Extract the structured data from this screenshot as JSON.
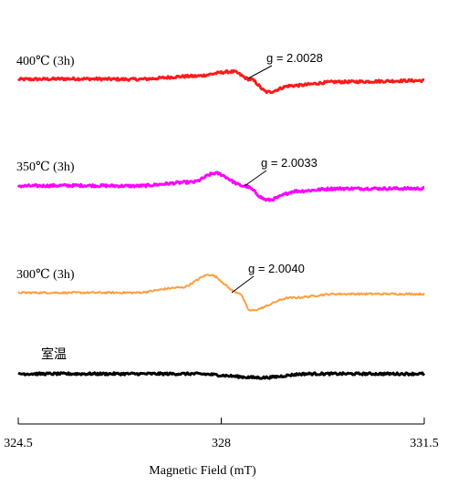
{
  "chart_data": {
    "type": "line",
    "xlabel": "Magnetic   Field (mT)",
    "xlim": [
      324.5,
      331.5
    ],
    "x_ticks": [
      "324.5",
      "328",
      "331.5"
    ],
    "series": [
      {
        "name": "400℃ (3h)",
        "color": "#ff1a1a",
        "g_label": "g = 2.0028",
        "points": [
          [
            324.5,
            0.0
          ],
          [
            325.5,
            0.02
          ],
          [
            326.5,
            0.0
          ],
          [
            327.5,
            0.12
          ],
          [
            328.2,
            0.3
          ],
          [
            328.5,
            0.0
          ],
          [
            328.8,
            -0.5
          ],
          [
            329.2,
            -0.25
          ],
          [
            330,
            -0.1
          ],
          [
            331.5,
            -0.05
          ]
        ]
      },
      {
        "name": "350℃ (3h)",
        "color": "#ff00ff",
        "g_label": "g = 2.0033",
        "points": [
          [
            324.5,
            0.0
          ],
          [
            325.5,
            0.02
          ],
          [
            326.5,
            0.0
          ],
          [
            327.5,
            0.15
          ],
          [
            327.9,
            0.5
          ],
          [
            328.4,
            0.0
          ],
          [
            328.8,
            -0.55
          ],
          [
            329.3,
            -0.2
          ],
          [
            330,
            -0.1
          ],
          [
            331.5,
            -0.1
          ]
        ]
      },
      {
        "name": "300℃ (3h)",
        "color": "#ff9e40",
        "g_label": "g = 2.0040",
        "points": [
          [
            324.5,
            0.0
          ],
          [
            325.5,
            0.0
          ],
          [
            326.5,
            0.0
          ],
          [
            327.3,
            0.2
          ],
          [
            327.8,
            0.7
          ],
          [
            328.3,
            0.0
          ],
          [
            328.5,
            -0.7
          ],
          [
            329.2,
            -0.2
          ],
          [
            330,
            -0.05
          ],
          [
            331.5,
            -0.05
          ]
        ]
      },
      {
        "name": "室温",
        "color": "#000000",
        "points": [
          [
            324.5,
            0.0
          ],
          [
            326,
            0.0
          ],
          [
            327.5,
            0.0
          ],
          [
            328.7,
            -0.15
          ],
          [
            329.5,
            0.0
          ],
          [
            331.5,
            0.0
          ]
        ]
      }
    ]
  }
}
